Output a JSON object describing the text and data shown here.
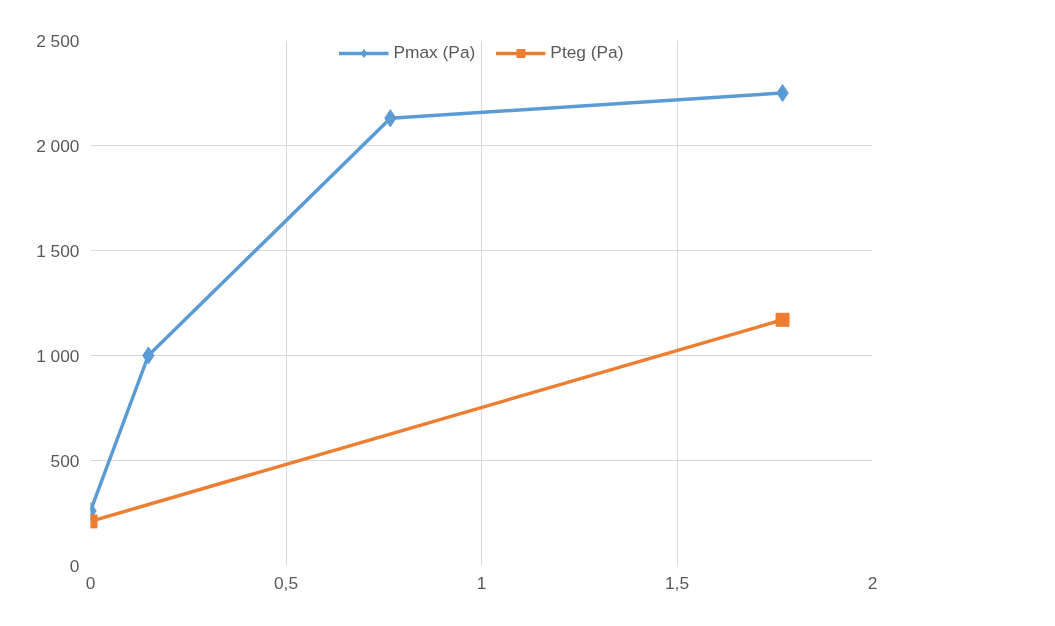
{
  "chart_data": {
    "type": "line",
    "x": [
      0,
      0.148,
      0.767,
      1.77
    ],
    "series": [
      {
        "name": "Pmax (Pa)",
        "color": "#5b9bd5",
        "marker": "diamond",
        "values": [
          260,
          1000,
          2130,
          2250
        ]
      },
      {
        "name": "Pteg (Pa)",
        "color": "#ed7d31",
        "marker": "square",
        "x": [
          0,
          1.77
        ],
        "values": [
          210,
          1170
        ]
      }
    ],
    "xlim": [
      0,
      2
    ],
    "xticks": [
      0,
      {
        "value": 0.5,
        "label": "0,5"
      },
      1,
      {
        "value": 1.5,
        "label": "1,5"
      },
      2
    ],
    "ylim": [
      0,
      2500
    ],
    "yticks": [
      0,
      500,
      {
        "value": 1000,
        "label": "1 000"
      },
      {
        "value": 1500,
        "label": "1 500"
      },
      {
        "value": 2000,
        "label": "2 000"
      },
      {
        "value": 2500,
        "label": "2 500"
      }
    ],
    "grid": true,
    "legend": "top",
    "line_style": "solid"
  }
}
